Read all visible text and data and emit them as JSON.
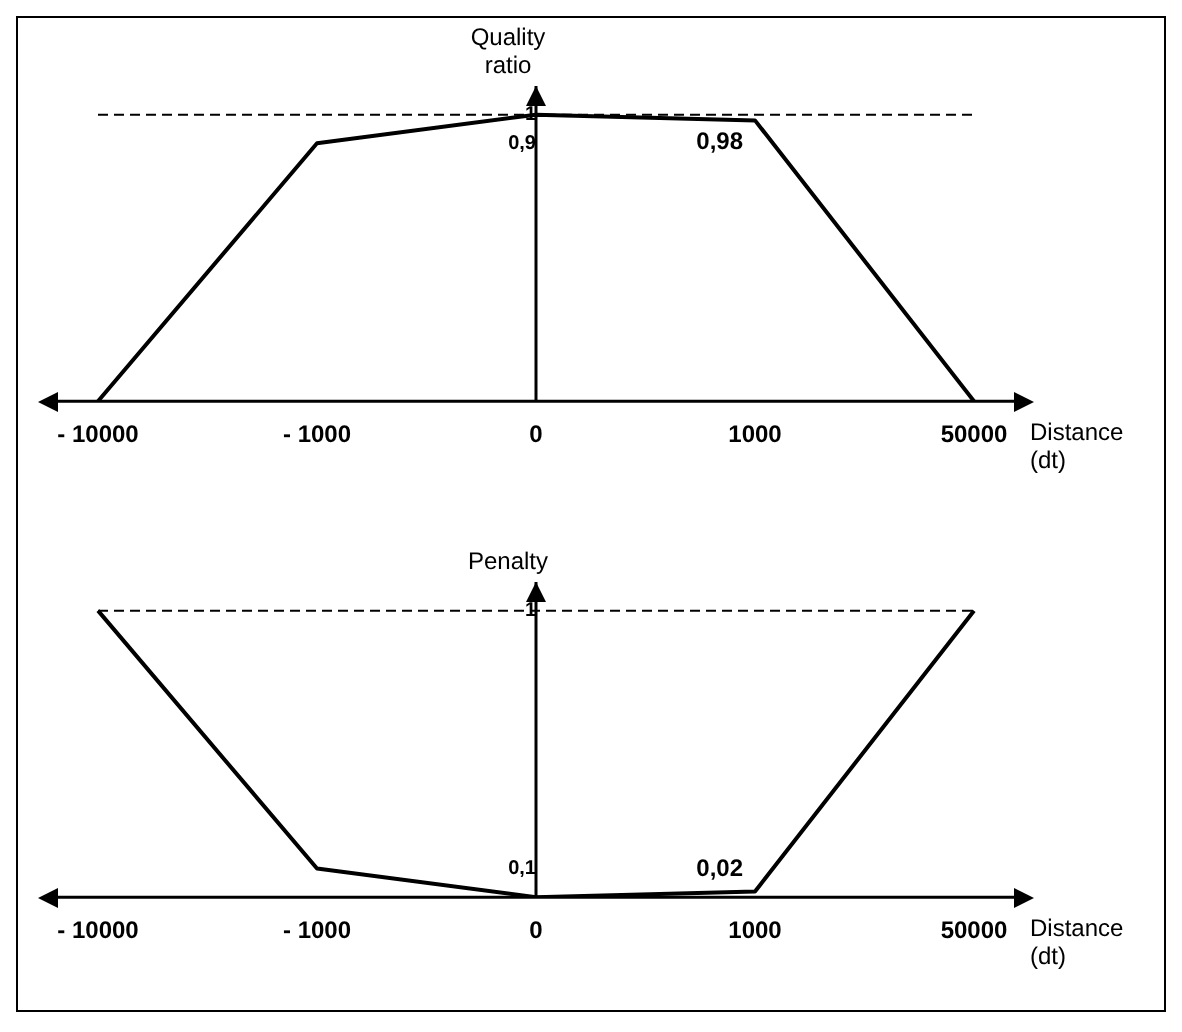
{
  "chart_data": [
    {
      "type": "line",
      "ylabel": "Quality ratio",
      "xlabel": "Distance (dt)",
      "categories": [
        "- 10000",
        "- 1000",
        "0",
        "1000",
        "50000"
      ],
      "series": [
        {
          "color": "#000000",
          "values": [
            0,
            0.9,
            1,
            0.98,
            0
          ],
          "value_labels": [
            null,
            null,
            null,
            "0,98",
            null
          ]
        }
      ],
      "ylim": [
        0,
        1.1
      ],
      "yticks": [
        {
          "value": 0.9,
          "label": "0,9"
        },
        1
      ],
      "ref_lines": [
        {
          "axis": "y",
          "value": 1,
          "line_style": "dashed",
          "color": "#000000"
        }
      ],
      "grid": false,
      "legend": false,
      "marker": "none",
      "line_style": "solid"
    },
    {
      "type": "line",
      "ylabel": "Penalty",
      "xlabel": "Distance (dt)",
      "categories": [
        "- 10000",
        "- 1000",
        "0",
        "1000",
        "50000"
      ],
      "series": [
        {
          "color": "#000000",
          "values": [
            1,
            0.1,
            0,
            0.02,
            1
          ],
          "value_labels": [
            null,
            null,
            null,
            "0,02",
            null
          ]
        }
      ],
      "ylim": [
        0,
        1.1
      ],
      "yticks": [
        {
          "value": 0.1,
          "label": "0,1"
        },
        1
      ],
      "ref_lines": [
        {
          "axis": "y",
          "value": 1,
          "line_style": "dashed",
          "color": "#000000"
        }
      ],
      "grid": false,
      "legend": false,
      "marker": "none",
      "line_style": "solid"
    }
  ]
}
